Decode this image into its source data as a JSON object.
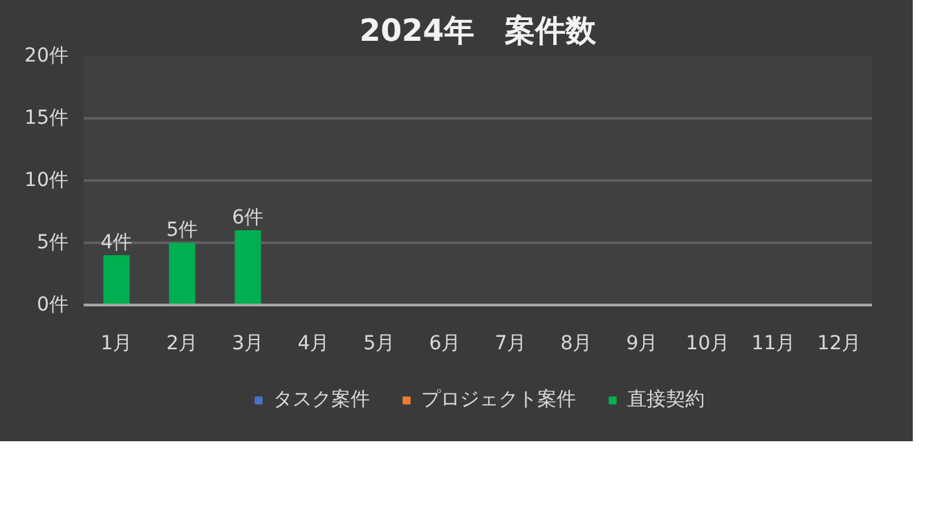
{
  "chart_data": {
    "type": "bar",
    "title": "2024年　案件数",
    "stacked": true,
    "categories": [
      "1月",
      "2月",
      "3月",
      "4月",
      "5月",
      "6月",
      "7月",
      "8月",
      "9月",
      "10月",
      "11月",
      "12月"
    ],
    "series": [
      {
        "name": "タスク案件",
        "color": "#4472c4",
        "values": [
          null,
          null,
          null,
          null,
          null,
          null,
          null,
          null,
          null,
          null,
          null,
          null
        ]
      },
      {
        "name": "プロジェクト案件",
        "color": "#ed7d31",
        "values": [
          null,
          null,
          null,
          null,
          null,
          null,
          null,
          null,
          null,
          null,
          null,
          null
        ]
      },
      {
        "name": "直接契約",
        "color": "#00b050",
        "values": [
          4,
          5,
          6,
          null,
          null,
          null,
          null,
          null,
          null,
          null,
          null,
          null
        ],
        "value_labels": [
          "4件",
          "5件",
          "6件",
          null,
          null,
          null,
          null,
          null,
          null,
          null,
          null,
          null
        ]
      }
    ],
    "ylim": [
      0,
      20
    ],
    "yticks": [
      {
        "value": 0,
        "label": "0件"
      },
      {
        "value": 5,
        "label": "5件"
      },
      {
        "value": 10,
        "label": "10件"
      },
      {
        "value": 15,
        "label": "15件"
      },
      {
        "value": 20,
        "label": "20件"
      }
    ],
    "grid": "y",
    "legend": "bottom"
  }
}
